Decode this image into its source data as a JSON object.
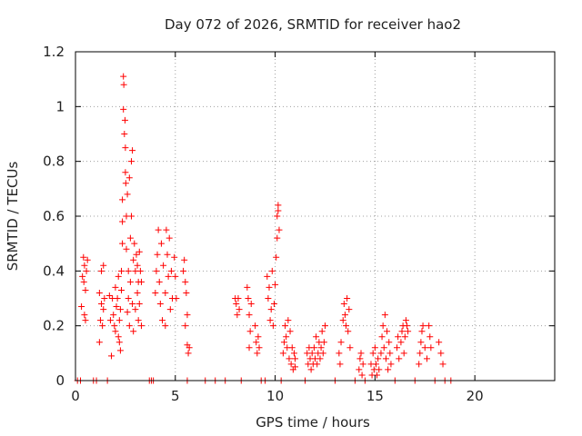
{
  "chart_data": {
    "type": "scatter",
    "title": "Day 072 of 2026, SRMTID for receiver hao2",
    "xlabel": "GPS time / hours",
    "ylabel": "SRMTID / TECUs",
    "xlim": [
      0,
      24
    ],
    "ylim": [
      0,
      1.2
    ],
    "x_ticks": [
      0,
      5,
      10,
      15,
      20
    ],
    "y_ticks": [
      0,
      0.2,
      0.4,
      0.6,
      0.8,
      1,
      1.2
    ],
    "x_tick_labels": [
      "0",
      "5",
      "10",
      "15",
      "20"
    ],
    "y_tick_labels": [
      "0",
      "0.2",
      "0.4",
      "0.6",
      "0.8",
      "1",
      "1.2"
    ],
    "grid": true,
    "marker": "plus",
    "color": "#ff0000",
    "series": [
      {
        "points": [
          [
            0.1,
            0
          ],
          [
            0.25,
            0
          ],
          [
            0.3,
            0.27
          ],
          [
            0.35,
            0.38
          ],
          [
            0.4,
            0.45
          ],
          [
            0.42,
            0.36
          ],
          [
            0.45,
            0.42
          ],
          [
            0.5,
            0.33
          ],
          [
            0.5,
            0.22
          ],
          [
            0.55,
            0.4
          ],
          [
            0.6,
            0.44
          ],
          [
            0.45,
            0.24
          ],
          [
            0.9,
            0
          ],
          [
            1.05,
            0
          ],
          [
            1.2,
            0.14
          ],
          [
            1.2,
            0.32
          ],
          [
            1.25,
            0.22
          ],
          [
            1.3,
            0.4
          ],
          [
            1.3,
            0.28
          ],
          [
            1.35,
            0.2
          ],
          [
            1.4,
            0.42
          ],
          [
            1.45,
            0.3
          ],
          [
            1.4,
            0.26
          ],
          [
            1.6,
            0
          ],
          [
            1.7,
            0.31
          ],
          [
            1.75,
            0.22
          ],
          [
            1.8,
            0.09
          ],
          [
            1.85,
            0.3
          ],
          [
            1.9,
            0.24
          ],
          [
            1.95,
            0.2
          ],
          [
            2.0,
            0.34
          ],
          [
            2.0,
            0.18
          ],
          [
            2.05,
            0.27
          ],
          [
            2.1,
            0.3
          ],
          [
            2.15,
            0.16
          ],
          [
            2.15,
            0.38
          ],
          [
            2.2,
            0.22
          ],
          [
            2.2,
            0.14
          ],
          [
            2.25,
            0.26
          ],
          [
            2.25,
            0.11
          ],
          [
            2.3,
            0.4
          ],
          [
            2.3,
            0.33
          ],
          [
            2.35,
            0.5
          ],
          [
            2.35,
            0.66
          ],
          [
            2.35,
            0.58
          ],
          [
            2.4,
            0.99
          ],
          [
            2.4,
            1.11
          ],
          [
            2.42,
            1.08
          ],
          [
            2.45,
            0.9
          ],
          [
            2.48,
            0.95
          ],
          [
            2.5,
            0.76
          ],
          [
            2.5,
            0.85
          ],
          [
            2.52,
            0.72
          ],
          [
            2.55,
            0.6
          ],
          [
            2.55,
            0.48
          ],
          [
            2.6,
            0.68
          ],
          [
            2.6,
            0.25
          ],
          [
            2.65,
            0.4
          ],
          [
            2.65,
            0.3
          ],
          [
            2.7,
            0.74
          ],
          [
            2.7,
            0.2
          ],
          [
            2.75,
            0.52
          ],
          [
            2.75,
            0.36
          ],
          [
            2.8,
            0.8
          ],
          [
            2.8,
            0.6
          ],
          [
            2.85,
            0.84
          ],
          [
            2.85,
            0.28
          ],
          [
            2.9,
            0.44
          ],
          [
            2.9,
            0.18
          ],
          [
            2.95,
            0.5
          ],
          [
            3.0,
            0.4
          ],
          [
            3.0,
            0.26
          ],
          [
            3.05,
            0.46
          ],
          [
            3.1,
            0.42
          ],
          [
            3.1,
            0.32
          ],
          [
            3.15,
            0.36
          ],
          [
            3.15,
            0.22
          ],
          [
            3.2,
            0.47
          ],
          [
            3.2,
            0.28
          ],
          [
            3.25,
            0.4
          ],
          [
            3.3,
            0.2
          ],
          [
            3.3,
            0.36
          ],
          [
            3.7,
            0
          ],
          [
            3.8,
            0
          ],
          [
            3.9,
            0
          ],
          [
            4.0,
            0.32
          ],
          [
            4.05,
            0.4
          ],
          [
            4.1,
            0.46
          ],
          [
            4.15,
            0.55
          ],
          [
            4.2,
            0.36
          ],
          [
            4.25,
            0.28
          ],
          [
            4.3,
            0.5
          ],
          [
            4.35,
            0.22
          ],
          [
            4.4,
            0.42
          ],
          [
            4.5,
            0.2
          ],
          [
            4.5,
            0.32
          ],
          [
            4.55,
            0.55
          ],
          [
            4.6,
            0.46
          ],
          [
            4.65,
            0.38
          ],
          [
            4.7,
            0.52
          ],
          [
            4.75,
            0.26
          ],
          [
            4.8,
            0.4
          ],
          [
            4.85,
            0.3
          ],
          [
            4.95,
            0.45
          ],
          [
            5.0,
            0.38
          ],
          [
            5.05,
            0.3
          ],
          [
            5.4,
            0.4
          ],
          [
            5.45,
            0.44
          ],
          [
            5.5,
            0.36
          ],
          [
            5.5,
            0.2
          ],
          [
            5.55,
            0.32
          ],
          [
            5.6,
            0.24
          ],
          [
            5.6,
            0.13
          ],
          [
            5.65,
            0.1
          ],
          [
            5.7,
            0.12
          ],
          [
            5.6,
            0
          ],
          [
            6.5,
            0
          ],
          [
            7.0,
            0
          ],
          [
            7.5,
            0
          ],
          [
            8.0,
            0.3
          ],
          [
            8.05,
            0.28
          ],
          [
            8.1,
            0.24
          ],
          [
            8.15,
            0.3
          ],
          [
            8.2,
            0.26
          ],
          [
            8.3,
            0
          ],
          [
            8.6,
            0.34
          ],
          [
            8.65,
            0.3
          ],
          [
            8.7,
            0.24
          ],
          [
            8.7,
            0.12
          ],
          [
            8.75,
            0.18
          ],
          [
            8.8,
            0.28
          ],
          [
            9.0,
            0.2
          ],
          [
            9.05,
            0.14
          ],
          [
            9.1,
            0.1
          ],
          [
            9.15,
            0.16
          ],
          [
            9.2,
            0.12
          ],
          [
            9.3,
            0
          ],
          [
            9.5,
            0
          ],
          [
            9.6,
            0.38
          ],
          [
            9.65,
            0.3
          ],
          [
            9.7,
            0.34
          ],
          [
            9.75,
            0.22
          ],
          [
            9.8,
            0.26
          ],
          [
            9.85,
            0.4
          ],
          [
            9.9,
            0.2
          ],
          [
            9.95,
            0.28
          ],
          [
            10.0,
            0.35
          ],
          [
            10.05,
            0.45
          ],
          [
            10.1,
            0.52
          ],
          [
            10.1,
            0.6
          ],
          [
            10.15,
            0.64
          ],
          [
            10.15,
            0.62
          ],
          [
            10.2,
            0.55
          ],
          [
            10.3,
            0
          ],
          [
            10.4,
            0.1
          ],
          [
            10.45,
            0.14
          ],
          [
            10.5,
            0.2
          ],
          [
            10.55,
            0.16
          ],
          [
            10.6,
            0.12
          ],
          [
            10.65,
            0.22
          ],
          [
            10.7,
            0.08
          ],
          [
            10.75,
            0.18
          ],
          [
            10.8,
            0.06
          ],
          [
            10.85,
            0.12
          ],
          [
            10.9,
            0.04
          ],
          [
            10.95,
            0.1
          ],
          [
            11.0,
            0.05
          ],
          [
            11.0,
            0.08
          ],
          [
            11.5,
            0
          ],
          [
            11.6,
            0.1
          ],
          [
            11.65,
            0.06
          ],
          [
            11.7,
            0.12
          ],
          [
            11.75,
            0.08
          ],
          [
            11.8,
            0.04
          ],
          [
            11.85,
            0.1
          ],
          [
            11.9,
            0.06
          ],
          [
            11.95,
            0.12
          ],
          [
            12.0,
            0.08
          ],
          [
            12.05,
            0.16
          ],
          [
            12.1,
            0.06
          ],
          [
            12.15,
            0.1
          ],
          [
            12.2,
            0.14
          ],
          [
            12.25,
            0.08
          ],
          [
            12.3,
            0.12
          ],
          [
            12.35,
            0.18
          ],
          [
            12.4,
            0.1
          ],
          [
            12.45,
            0.14
          ],
          [
            12.5,
            0.2
          ],
          [
            13.0,
            0
          ],
          [
            13.2,
            0.1
          ],
          [
            13.25,
            0.06
          ],
          [
            13.3,
            0.14
          ],
          [
            13.4,
            0.22
          ],
          [
            13.45,
            0.28
          ],
          [
            13.5,
            0.24
          ],
          [
            13.55,
            0.2
          ],
          [
            13.6,
            0.3
          ],
          [
            13.65,
            0.18
          ],
          [
            13.7,
            0.26
          ],
          [
            13.75,
            0.12
          ],
          [
            14.0,
            0
          ],
          [
            14.2,
            0.04
          ],
          [
            14.25,
            0.08
          ],
          [
            14.3,
            0.1
          ],
          [
            14.35,
            0.02
          ],
          [
            14.4,
            0.06
          ],
          [
            14.5,
            0
          ],
          [
            14.8,
            0.06
          ],
          [
            14.85,
            0.02
          ],
          [
            14.9,
            0.1
          ],
          [
            14.95,
            0.04
          ],
          [
            15.0,
            0.12
          ],
          [
            15.05,
            0.06
          ],
          [
            15.1,
            0.02
          ],
          [
            15.15,
            0.08
          ],
          [
            15.2,
            0.04
          ],
          [
            15.3,
            0.1
          ],
          [
            15.35,
            0.16
          ],
          [
            15.4,
            0.2
          ],
          [
            15.45,
            0.12
          ],
          [
            15.5,
            0.24
          ],
          [
            15.55,
            0.08
          ],
          [
            15.6,
            0.18
          ],
          [
            15.65,
            0.04
          ],
          [
            15.7,
            0.14
          ],
          [
            15.75,
            0.1
          ],
          [
            15.8,
            0.06
          ],
          [
            16.0,
            0
          ],
          [
            16.1,
            0.12
          ],
          [
            16.15,
            0.16
          ],
          [
            16.2,
            0.08
          ],
          [
            16.3,
            0.14
          ],
          [
            16.35,
            0.18
          ],
          [
            16.4,
            0.2
          ],
          [
            16.45,
            0.1
          ],
          [
            16.5,
            0.16
          ],
          [
            16.55,
            0.22
          ],
          [
            16.6,
            0.2
          ],
          [
            16.65,
            0.18
          ],
          [
            17.0,
            0
          ],
          [
            17.2,
            0.06
          ],
          [
            17.25,
            0.1
          ],
          [
            17.3,
            0.14
          ],
          [
            17.35,
            0.18
          ],
          [
            17.4,
            0.2
          ],
          [
            17.5,
            0.12
          ],
          [
            17.6,
            0.08
          ],
          [
            17.7,
            0.2
          ],
          [
            17.75,
            0.16
          ],
          [
            17.8,
            0.12
          ],
          [
            18.0,
            0
          ],
          [
            18.2,
            0.14
          ],
          [
            18.3,
            0.1
          ],
          [
            18.4,
            0.06
          ],
          [
            18.5,
            0
          ],
          [
            18.8,
            0
          ]
        ]
      }
    ]
  }
}
